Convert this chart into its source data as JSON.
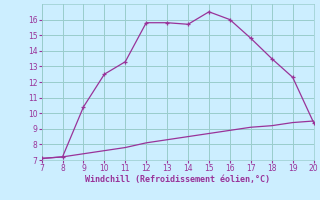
{
  "xlabel": "Windchill (Refroidissement éolien,°C)",
  "x_main": [
    7,
    8,
    9,
    10,
    11,
    12,
    13,
    14,
    15,
    16,
    17,
    18,
    19,
    20
  ],
  "y_main": [
    7.1,
    7.2,
    10.4,
    12.5,
    13.3,
    15.8,
    15.8,
    15.7,
    16.5,
    16.0,
    14.8,
    13.5,
    12.3,
    9.4
  ],
  "x_ref": [
    7,
    8,
    9,
    10,
    11,
    12,
    13,
    14,
    15,
    16,
    17,
    18,
    19,
    20
  ],
  "y_ref": [
    7.1,
    7.2,
    7.4,
    7.6,
    7.8,
    8.1,
    8.3,
    8.5,
    8.7,
    8.9,
    9.1,
    9.2,
    9.4,
    9.5
  ],
  "line_color": "#993399",
  "bg_color": "#cceeff",
  "grid_color": "#99cccc",
  "xlim": [
    7,
    20
  ],
  "ylim": [
    7,
    17
  ],
  "xticks": [
    7,
    8,
    9,
    10,
    11,
    12,
    13,
    14,
    15,
    16,
    17,
    18,
    19,
    20
  ],
  "yticks": [
    7,
    8,
    9,
    10,
    11,
    12,
    13,
    14,
    15,
    16
  ],
  "tick_fontsize": 5.5,
  "xlabel_fontsize": 6.0,
  "marker": "+"
}
